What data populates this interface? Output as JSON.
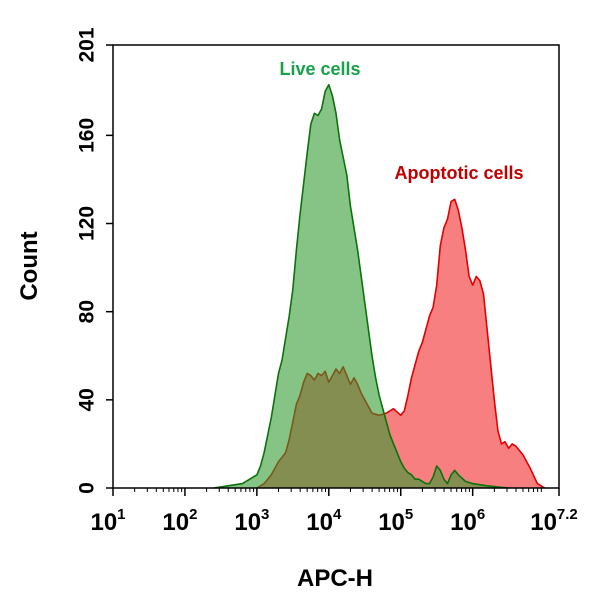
{
  "chart_data": {
    "type": "area",
    "xlabel": "APC-H",
    "ylabel": "Count",
    "x_scale": "log10",
    "xlim": [
      1,
      7.2
    ],
    "ylim": [
      0,
      201
    ],
    "y_ticks": [
      0,
      40,
      80,
      120,
      160,
      201
    ],
    "x_ticks": [
      {
        "base": "10",
        "exp": "1"
      },
      {
        "base": "10",
        "exp": "2"
      },
      {
        "base": "10",
        "exp": "3"
      },
      {
        "base": "10",
        "exp": "4"
      },
      {
        "base": "10",
        "exp": "5"
      },
      {
        "base": "10",
        "exp": "6"
      },
      {
        "base": "10",
        "exp": "7.2"
      }
    ],
    "annotations": [
      {
        "text": "Live cells",
        "color": "#17a24a"
      },
      {
        "text": "Apoptotic cells",
        "color": "#c00000"
      }
    ],
    "series": [
      {
        "fill": "#f23a3a",
        "fill_opacity": 0.65,
        "stroke": "#e30000",
        "x": [
          3.0,
          3.1,
          3.2,
          3.3,
          3.4,
          3.45,
          3.5,
          3.55,
          3.6,
          3.65,
          3.7,
          3.75,
          3.8,
          3.85,
          3.9,
          3.95,
          4.0,
          4.05,
          4.1,
          4.15,
          4.2,
          4.25,
          4.3,
          4.35,
          4.4,
          4.45,
          4.5,
          4.55,
          4.6,
          4.7,
          4.8,
          4.9,
          5.0,
          5.05,
          5.1,
          5.15,
          5.2,
          5.25,
          5.3,
          5.35,
          5.4,
          5.45,
          5.5,
          5.55,
          5.6,
          5.65,
          5.7,
          5.75,
          5.8,
          5.85,
          5.9,
          5.95,
          6.0,
          6.05,
          6.1,
          6.15,
          6.2,
          6.25,
          6.3,
          6.35,
          6.4,
          6.45,
          6.5,
          6.55,
          6.6,
          6.7,
          6.8,
          6.9,
          7.0
        ],
        "y": [
          0,
          2,
          6,
          12,
          16,
          22,
          30,
          38,
          42,
          48,
          52,
          51,
          49,
          52,
          51,
          53,
          48,
          51,
          54,
          52,
          55,
          51,
          47,
          50,
          47,
          43,
          40,
          37,
          34,
          33,
          34,
          36,
          33,
          35,
          42,
          50,
          56,
          62,
          66,
          72,
          78,
          82,
          92,
          110,
          118,
          122,
          130,
          131,
          126,
          118,
          108,
          96,
          92,
          96,
          94,
          88,
          72,
          56,
          40,
          26,
          20,
          21,
          18,
          20,
          19,
          15,
          9,
          2,
          0
        ]
      },
      {
        "fill": "#2e9a2e",
        "fill_opacity": 0.58,
        "stroke": "#0c720c",
        "x": [
          2.4,
          2.6,
          2.8,
          2.9,
          3.0,
          3.05,
          3.1,
          3.15,
          3.2,
          3.25,
          3.3,
          3.35,
          3.4,
          3.45,
          3.5,
          3.55,
          3.6,
          3.65,
          3.7,
          3.75,
          3.8,
          3.85,
          3.9,
          3.95,
          4.0,
          4.05,
          4.1,
          4.15,
          4.2,
          4.25,
          4.3,
          4.35,
          4.4,
          4.45,
          4.5,
          4.55,
          4.6,
          4.65,
          4.7,
          4.75,
          4.8,
          4.85,
          4.9,
          4.95,
          5.0,
          5.05,
          5.1,
          5.15,
          5.2,
          5.25,
          5.3,
          5.35,
          5.4,
          5.45,
          5.5,
          5.55,
          5.6,
          5.65,
          5.7,
          5.75,
          5.8,
          5.9,
          6.0,
          6.2,
          6.5
        ],
        "y": [
          0,
          1,
          2,
          4,
          6,
          10,
          16,
          24,
          32,
          42,
          52,
          58,
          68,
          78,
          90,
          108,
          124,
          138,
          152,
          165,
          170,
          169,
          172,
          180,
          183,
          178,
          170,
          158,
          150,
          142,
          128,
          118,
          108,
          96,
          84,
          72,
          60,
          50,
          42,
          36,
          30,
          24,
          20,
          16,
          12,
          9,
          7,
          6,
          4,
          4,
          3,
          2,
          2,
          5,
          10,
          8,
          4,
          2,
          6,
          8,
          6,
          3,
          2,
          1,
          0
        ]
      }
    ]
  }
}
